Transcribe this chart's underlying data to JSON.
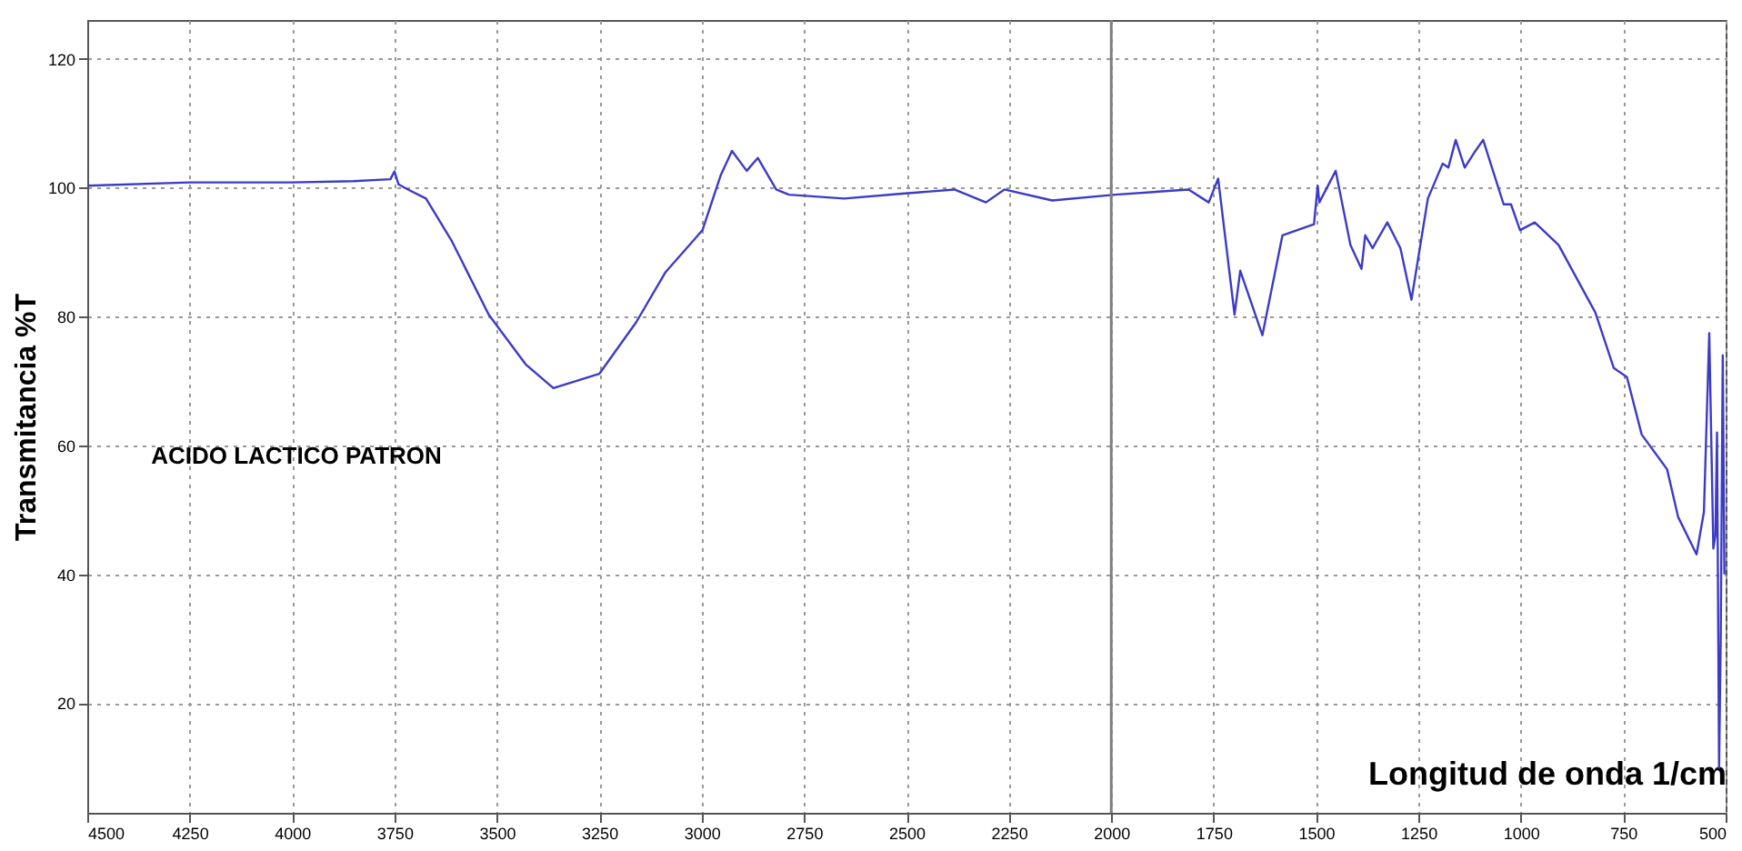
{
  "chart_data": {
    "type": "line",
    "xlabel": "Longitud de onda 1/cm",
    "ylabel": "Transmitancia %T",
    "annotations": [
      "ACIDO LACTICO PATRON"
    ],
    "xlim": [
      4500,
      500
    ],
    "xticks": [
      4500,
      4250,
      4000,
      3750,
      3500,
      3250,
      3000,
      2750,
      2500,
      2250,
      2000,
      1750,
      1500,
      1250,
      1000,
      750,
      500
    ],
    "ylim": [
      3,
      126
    ],
    "yticks": [
      20,
      40,
      60,
      80,
      100,
      120
    ],
    "grid": true,
    "line_style": "solid",
    "marker": "none",
    "ref_lines": [
      {
        "axis": "x",
        "value": 2000,
        "color": "#808080"
      }
    ],
    "series": [
      {
        "color": "#3b3bc8",
        "x": [
          4500,
          4250,
          4000,
          3850,
          3760,
          3750,
          3740,
          3720,
          3673,
          3610,
          3520,
          3430,
          3362,
          3250,
          3160,
          3088,
          2998,
          2953,
          2926,
          2890,
          2863,
          2818,
          2787,
          2652,
          2504,
          2383,
          2306,
          2261,
          2144,
          1991,
          1811,
          1762,
          1739,
          1699,
          1685,
          1631,
          1582,
          1505,
          1496,
          1492,
          1452,
          1416,
          1389,
          1380,
          1362,
          1326,
          1294,
          1267,
          1227,
          1191,
          1177,
          1159,
          1137,
          1114,
          1092,
          1042,
          1024,
          1002,
          966,
          908,
          818,
          773,
          741,
          705,
          643,
          616,
          571,
          553,
          540,
          530,
          525,
          521,
          516,
          512,
          507,
          503
        ],
        "values": [
          100.3,
          100.8,
          100.8,
          101.0,
          101.3,
          102.5,
          100.5,
          99.8,
          98.3,
          91.7,
          80.3,
          72.6,
          68.9,
          71.1,
          79.1,
          86.9,
          93.4,
          102.0,
          105.7,
          102.6,
          104.6,
          99.7,
          98.9,
          98.3,
          99.1,
          99.7,
          97.7,
          99.7,
          98.0,
          98.9,
          99.7,
          97.7,
          101.4,
          80.3,
          87.1,
          77.1,
          92.6,
          94.3,
          100.3,
          97.7,
          102.6,
          91.1,
          87.4,
          92.6,
          90.6,
          94.6,
          90.6,
          82.6,
          98.3,
          103.7,
          103.1,
          107.4,
          103.1,
          105.4,
          107.4,
          97.4,
          97.4,
          93.4,
          94.6,
          91.1,
          80.6,
          72.0,
          70.6,
          61.7,
          56.3,
          48.9,
          43.1,
          49.7,
          77.4,
          44.0,
          46.0,
          62.0,
          10.0,
          30.0,
          74.0,
          40.0
        ]
      }
    ]
  }
}
